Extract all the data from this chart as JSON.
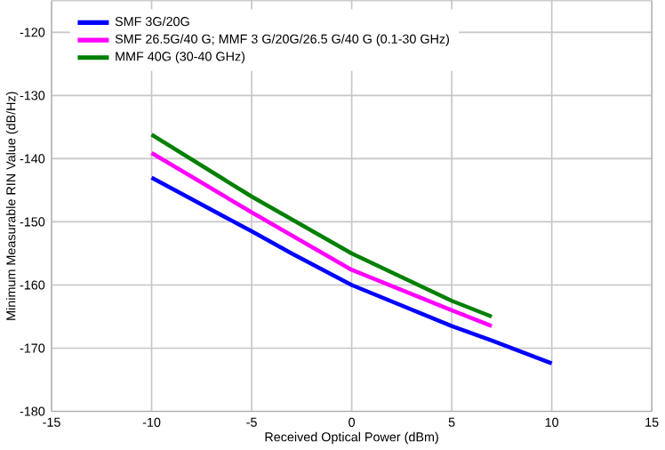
{
  "chart_data": {
    "type": "line",
    "xlabel": "Received Optical Power (dBm)",
    "ylabel": "Minimum Measurable RIN Value (dB/Hz)",
    "xlim": [
      -15,
      15
    ],
    "xticks": [
      -15,
      -10,
      -5,
      0,
      5,
      10,
      15
    ],
    "ylim": [
      -180,
      -115
    ],
    "yticks": [
      -180,
      -170,
      -160,
      -150,
      -140,
      -130,
      -120
    ],
    "grid": true,
    "legend": "top left",
    "series": [
      {
        "name": "SMF 3G/20G",
        "color": "#0000ff",
        "x": [
          -10,
          -5,
          -3,
          0,
          5,
          7,
          10
        ],
        "values": [
          -143,
          -151.5,
          -155,
          -160,
          -166.5,
          -168.8,
          -172.4
        ]
      },
      {
        "name": "SMF 26.5G/40 G; MMF 3 G/20G/26.5 G/40 G (0.1-30 GHz)",
        "color": "#ff00ff",
        "x": [
          -10,
          -5,
          0,
          5,
          7
        ],
        "values": [
          -139.1,
          -148.5,
          -157.6,
          -164,
          -166.5
        ]
      },
      {
        "name": "MMF 40G (30-40 GHz)",
        "color": "#008000",
        "x": [
          -10,
          -5,
          0,
          5,
          7
        ],
        "values": [
          -136.2,
          -146,
          -155,
          -162.5,
          -165
        ]
      }
    ]
  }
}
